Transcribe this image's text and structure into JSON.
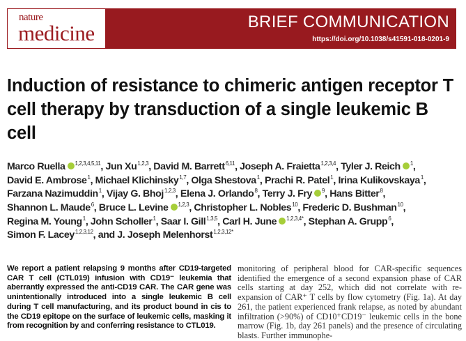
{
  "header": {
    "logo_top": "nature",
    "logo_bottom": "medicine",
    "section": "BRIEF COMMUNICATION",
    "doi": "https://doi.org/10.1038/s41591-018-0201-9",
    "brand_color": "#981a1f",
    "orcid_color": "#a6ce39"
  },
  "title": "Induction of resistance to chimeric antigen receptor T cell therapy by transduction of a single leukemic B cell",
  "authors": [
    [
      {
        "name": "Marco Ruella",
        "orcid": true,
        "sup": "1,2,3,4,5,11"
      },
      {
        "name": "Jun Xu",
        "sup": "1,2,3"
      },
      {
        "name": "David M. Barrett",
        "sup": "6,11"
      },
      {
        "name": "Joseph A. Fraietta",
        "sup": "1,2,3,4"
      },
      {
        "name": "Tyler J. Reich",
        "orcid": true,
        "sup": "1"
      }
    ],
    [
      {
        "name": "David E. Ambrose",
        "sup": "1"
      },
      {
        "name": "Michael Klichinsky",
        "sup": "1,7"
      },
      {
        "name": "Olga Shestova",
        "sup": "1"
      },
      {
        "name": "Prachi R. Patel",
        "sup": "1"
      },
      {
        "name": "Irina Kulikovskaya",
        "sup": "1"
      }
    ],
    [
      {
        "name": "Farzana Nazimuddin",
        "sup": "1"
      },
      {
        "name": "Vijay G. Bhoj",
        "sup": "1,2,3"
      },
      {
        "name": "Elena J. Orlando",
        "sup": "8"
      },
      {
        "name": "Terry J. Fry",
        "orcid": true,
        "sup": "9"
      },
      {
        "name": "Hans Bitter",
        "sup": "8"
      }
    ],
    [
      {
        "name": "Shannon L. Maude",
        "sup": "6"
      },
      {
        "name": "Bruce L. Levine",
        "orcid": true,
        "sup": "1,2,3"
      },
      {
        "name": "Christopher L. Nobles",
        "sup": "10"
      },
      {
        "name": "Frederic D. Bushman",
        "sup": "10"
      }
    ],
    [
      {
        "name": "Regina M. Young",
        "sup": "1"
      },
      {
        "name": "John Scholler",
        "sup": "1"
      },
      {
        "name": "Saar I. Gill",
        "sup": "1,3,5"
      },
      {
        "name": "Carl H. June",
        "orcid": true,
        "sup": "1,2,3,4*"
      },
      {
        "name": "Stephan A. Grupp",
        "sup": "6"
      }
    ],
    [
      {
        "name": "Simon F. Lacey",
        "sup": "1,2,3,12"
      },
      {
        "name": "J. Joseph Melenhorst",
        "sup": "1,2,3,12*",
        "prefix": "and "
      }
    ]
  ],
  "abstract": "We report a patient relapsing 9 months after CD19-targeted CAR T cell (CTL019) infusion with CD19⁻ leukemia that aberrantly expressed the anti-CD19 CAR. The CAR gene was unintentionally introduced into a single leukemic B cell during T cell manufacturing, and its product bound in cis to the CD19 epitope on the surface of leukemic cells, masking it from recognition by and conferring resistance to CTL019.",
  "body": "monitoring of peripheral blood for CAR-specific sequences identified the emergence of a second expansion phase of CAR cells starting at day 252, which did not correlate with re-expansion of CAR⁺ T cells by flow cytometry (Fig. 1a). At day 261, the patient experienced frank relapse, as noted by abundant infiltration (>90%) of CD10⁺CD19⁻ leukemic cells in the bone marrow (Fig. 1b, day 261 panels) and the presence of circulating blasts. Further immunophe-"
}
